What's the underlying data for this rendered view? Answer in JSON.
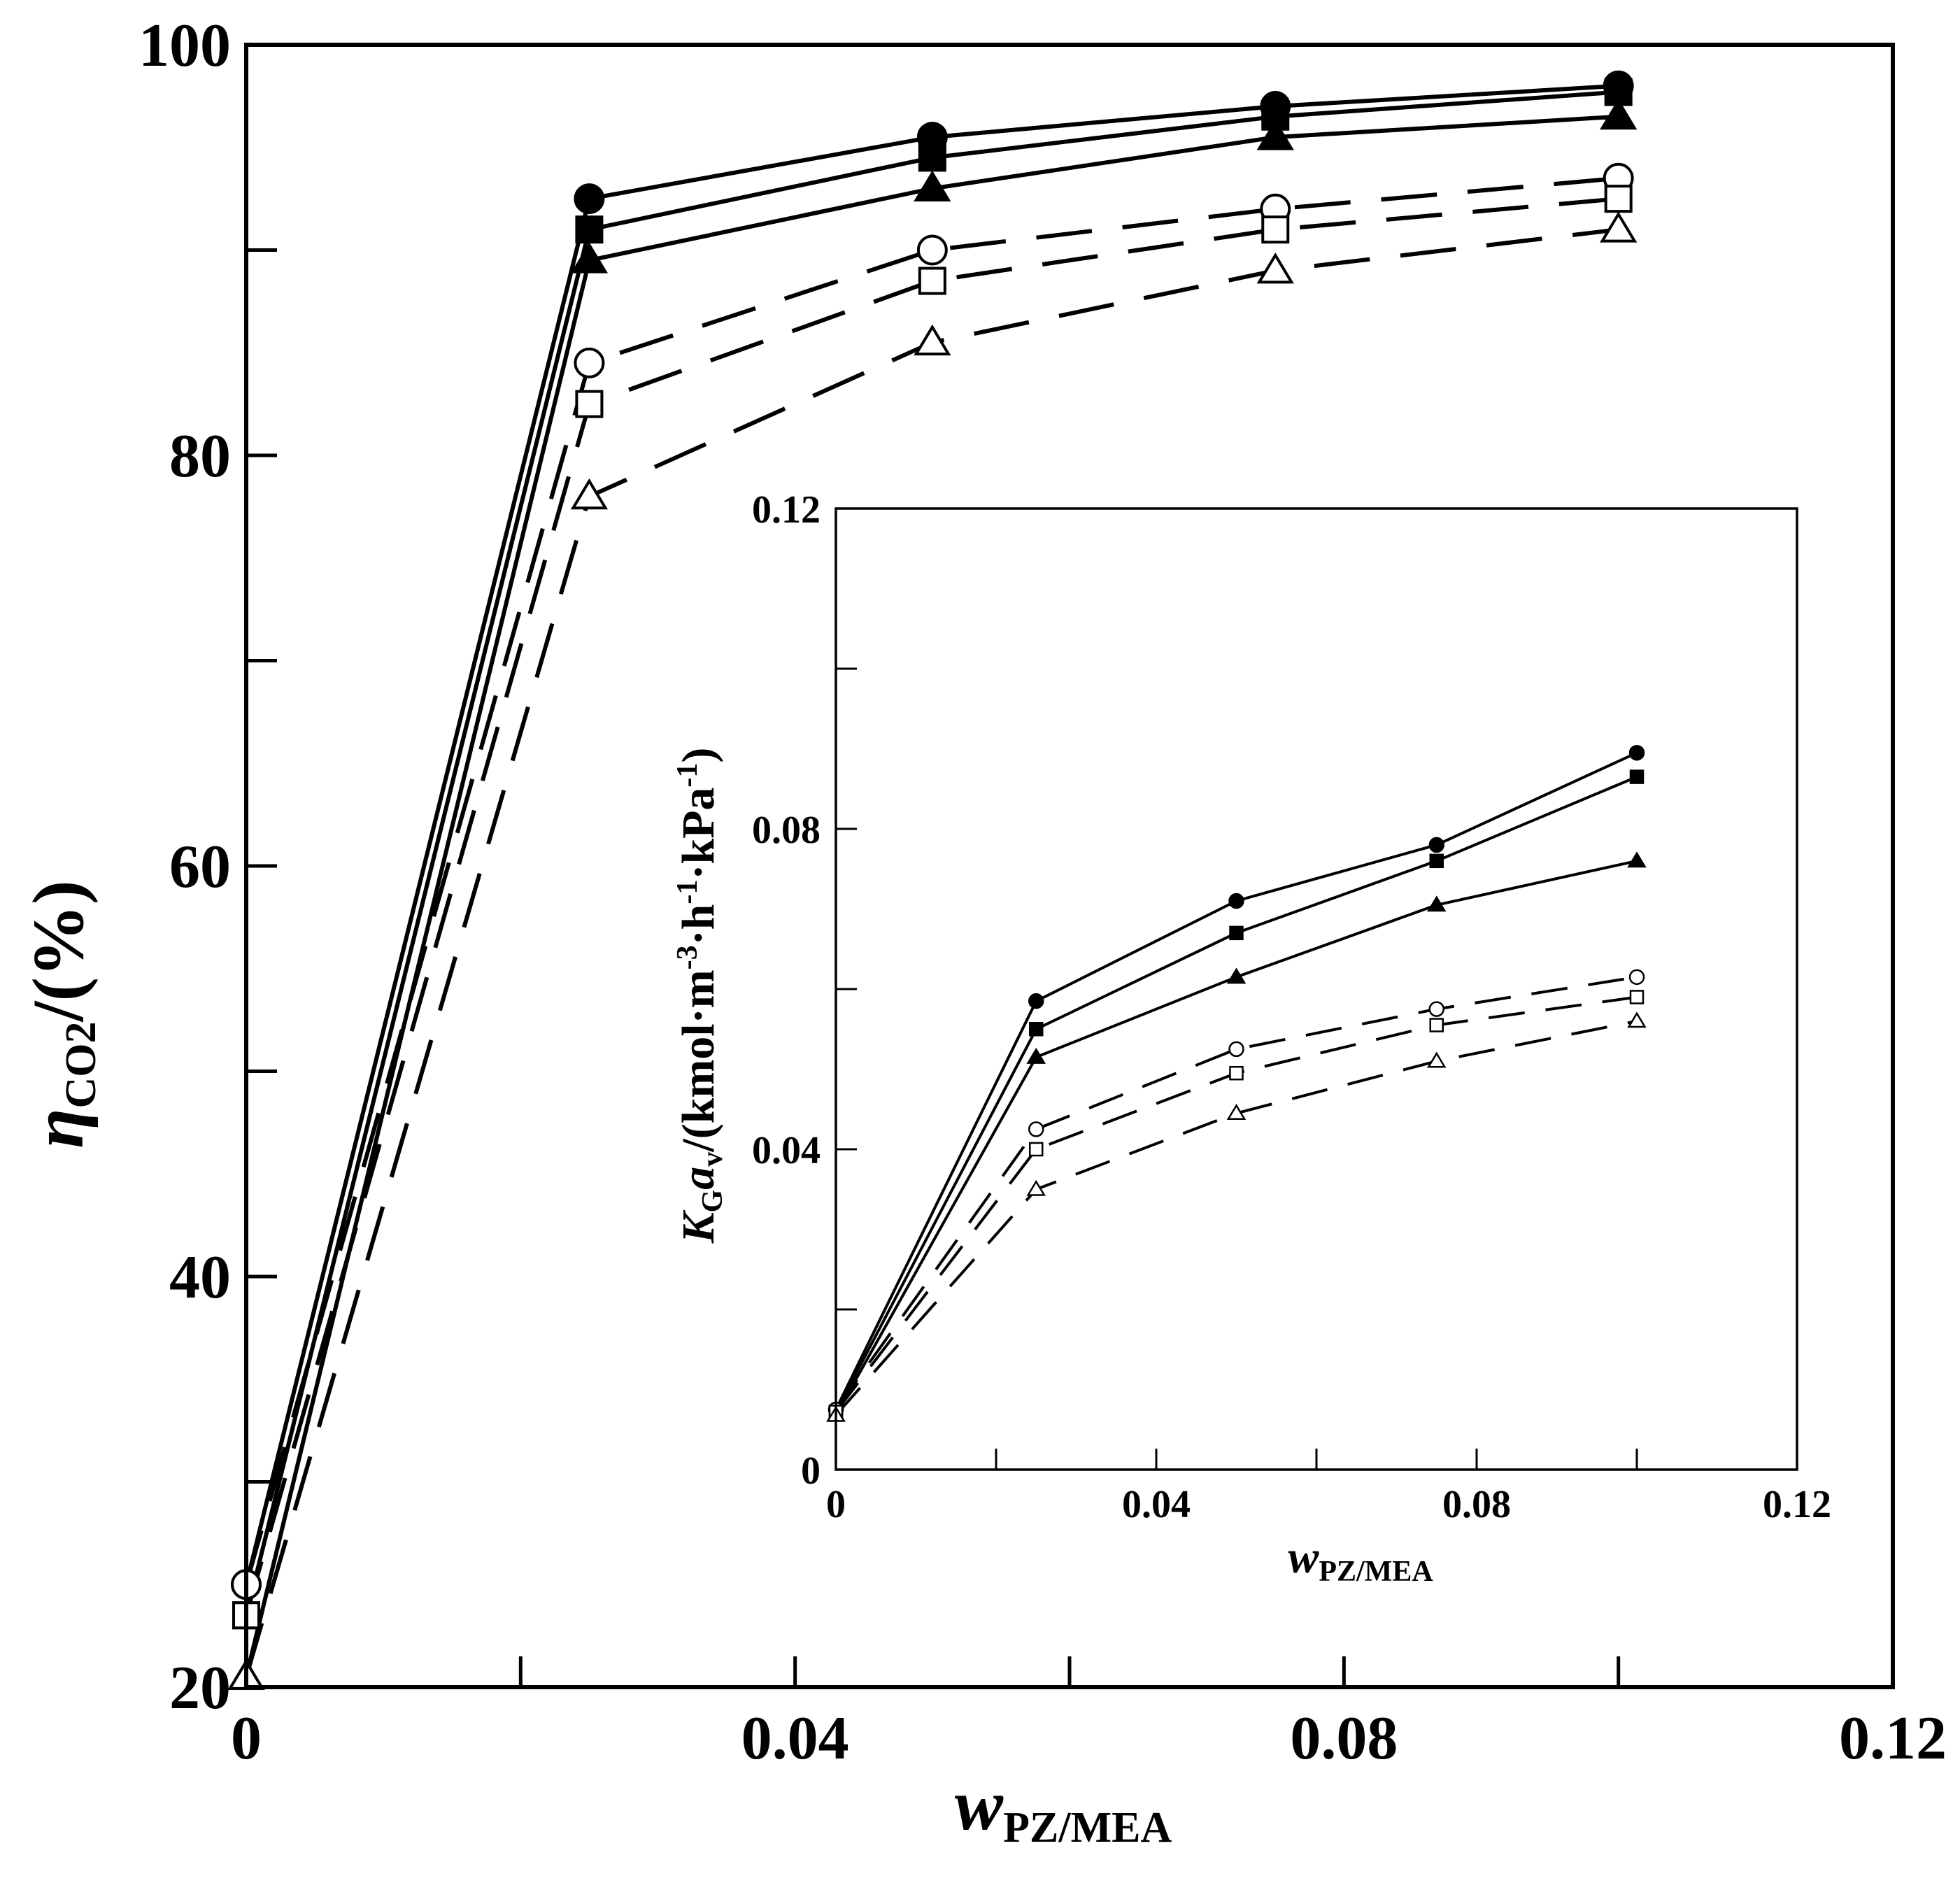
{
  "chart_data": [
    {
      "type": "line",
      "name": "main",
      "xlabel": {
        "var": "w",
        "sub": "PZ/MEA"
      },
      "ylabel": {
        "var": "η",
        "sub": "CO2",
        "tail": "/(%)"
      },
      "xlim": [
        0,
        0.12
      ],
      "ylim": [
        20,
        100
      ],
      "xticks": [
        0,
        0.02,
        0.04,
        0.06,
        0.08,
        0.1,
        0.12
      ],
      "xtick_labels": [
        {
          "value": 0,
          "label": "0"
        },
        {
          "value": 0.04,
          "label": "0.04"
        },
        {
          "value": 0.08,
          "label": "0.08"
        },
        {
          "value": 0.12,
          "label": "0.12"
        }
      ],
      "yticks": [
        20,
        30,
        40,
        50,
        60,
        70,
        80,
        90,
        100
      ],
      "ytick_labels": [
        {
          "value": 20,
          "label": "20"
        },
        {
          "value": 40,
          "label": "40"
        },
        {
          "value": 60,
          "label": "60"
        },
        {
          "value": 80,
          "label": "80"
        },
        {
          "value": 100,
          "label": "100"
        }
      ],
      "series": [
        {
          "marker": "circle",
          "filled": true,
          "dashed": false,
          "x": [
            0,
            0.025,
            0.05,
            0.075,
            0.1
          ],
          "y": [
            25.0,
            92.5,
            95.5,
            97.0,
            98.0
          ]
        },
        {
          "marker": "square",
          "filled": true,
          "dashed": false,
          "x": [
            0,
            0.025,
            0.05,
            0.075,
            0.1
          ],
          "y": [
            23.5,
            91.0,
            94.5,
            96.5,
            97.7
          ]
        },
        {
          "marker": "triangle",
          "filled": true,
          "dashed": false,
          "x": [
            0,
            0.025,
            0.05,
            0.075,
            0.1
          ],
          "y": [
            20.5,
            89.5,
            93.0,
            95.5,
            96.5
          ]
        },
        {
          "marker": "circle",
          "filled": false,
          "dashed": true,
          "x": [
            0,
            0.025,
            0.05,
            0.075,
            0.1
          ],
          "y": [
            25.0,
            84.5,
            90.0,
            92.0,
            93.5
          ]
        },
        {
          "marker": "square",
          "filled": false,
          "dashed": true,
          "x": [
            0,
            0.025,
            0.05,
            0.075,
            0.1
          ],
          "y": [
            23.5,
            82.5,
            88.5,
            91.0,
            92.5
          ]
        },
        {
          "marker": "triangle",
          "filled": false,
          "dashed": true,
          "x": [
            0,
            0.025,
            0.05,
            0.075,
            0.1
          ],
          "y": [
            20.5,
            78.0,
            85.5,
            89.0,
            91.0
          ]
        }
      ]
    },
    {
      "type": "line",
      "name": "inset",
      "xlabel": {
        "var": "w",
        "sub": "PZ/MEA"
      },
      "ylabel": {
        "k": "K",
        "ksub": "G",
        "a": "a",
        "asub": "v",
        "tail": "/(kmol·m",
        "e1": "-3",
        "mid1": "·h",
        "e2": "-1",
        "mid2": "·kPa",
        "e3": "-1",
        "end": ")"
      },
      "xlim": [
        0,
        0.12
      ],
      "ylim": [
        0,
        0.12
      ],
      "xticks": [
        0,
        0.02,
        0.04,
        0.06,
        0.08,
        0.1,
        0.12
      ],
      "xtick_labels": [
        {
          "value": 0,
          "label": "0"
        },
        {
          "value": 0.04,
          "label": "0.04"
        },
        {
          "value": 0.08,
          "label": "0.08"
        },
        {
          "value": 0.12,
          "label": "0.12"
        }
      ],
      "yticks": [
        0,
        0.02,
        0.04,
        0.06,
        0.08,
        0.1,
        0.12
      ],
      "ytick_labels": [
        {
          "value": 0,
          "label": "0"
        },
        {
          "value": 0.04,
          "label": "0.04"
        },
        {
          "value": 0.08,
          "label": "0.08"
        },
        {
          "value": 0.12,
          "label": "0.12"
        }
      ],
      "series": [
        {
          "marker": "circle",
          "filled": true,
          "dashed": false,
          "x": [
            0,
            0.025,
            0.05,
            0.075,
            0.1
          ],
          "y": [
            0.0075,
            0.0585,
            0.071,
            0.078,
            0.0895
          ]
        },
        {
          "marker": "square",
          "filled": true,
          "dashed": false,
          "x": [
            0,
            0.025,
            0.05,
            0.075,
            0.1
          ],
          "y": [
            0.0072,
            0.055,
            0.067,
            0.076,
            0.0865
          ]
        },
        {
          "marker": "triangle",
          "filled": true,
          "dashed": false,
          "x": [
            0,
            0.025,
            0.05,
            0.075,
            0.1
          ],
          "y": [
            0.0068,
            0.0515,
            0.0615,
            0.0705,
            0.076
          ]
        },
        {
          "marker": "circle",
          "filled": false,
          "dashed": true,
          "x": [
            0,
            0.025,
            0.05,
            0.075,
            0.1
          ],
          "y": [
            0.0075,
            0.0425,
            0.0525,
            0.0575,
            0.0615
          ]
        },
        {
          "marker": "square",
          "filled": false,
          "dashed": true,
          "x": [
            0,
            0.025,
            0.05,
            0.075,
            0.1
          ],
          "y": [
            0.0072,
            0.04,
            0.0495,
            0.0555,
            0.059
          ]
        },
        {
          "marker": "triangle",
          "filled": false,
          "dashed": true,
          "x": [
            0,
            0.025,
            0.05,
            0.075,
            0.1
          ],
          "y": [
            0.0068,
            0.035,
            0.0445,
            0.051,
            0.056
          ]
        }
      ]
    }
  ]
}
